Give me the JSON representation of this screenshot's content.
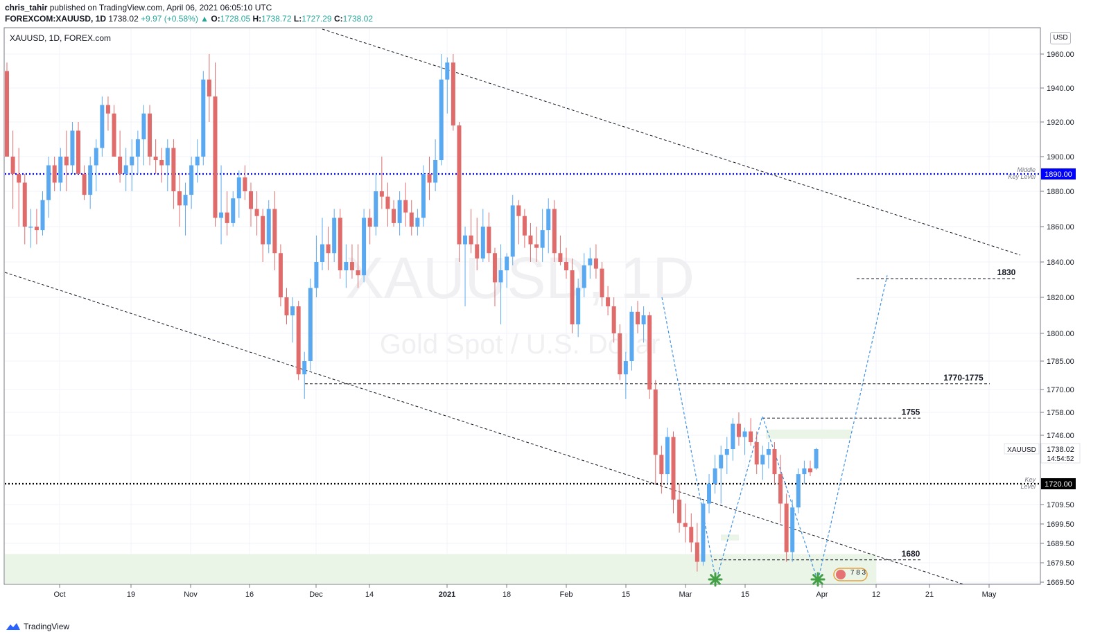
{
  "header": {
    "publisher": "chris_tahir",
    "published_text": "published on TradingView.com, April 06, 2021 06:05:10 UTC",
    "symbol_full": "FOREXCOM:XAUUSD, 1D",
    "last": "1738.02",
    "change": "+9.97 (+0.58%)",
    "open_label": "O:",
    "open": "1728.05",
    "high_label": "H:",
    "high": "1738.72",
    "low_label": "L:",
    "low": "1727.29",
    "close_label": "C:",
    "close": "1738.02"
  },
  "pane_title": "XAUUSD, 1D, FOREX.com",
  "watermark": {
    "line1": "XAUUSD, 1D",
    "line2": "Gold Spot / U.S. Dollar"
  },
  "currency": "USD",
  "footer": {
    "brand": "TradingView"
  },
  "colors": {
    "up": "#5aa9f0",
    "down": "#e06b6b",
    "key_blue": "#0000ff",
    "key_black": "#000000",
    "zone": "#e8f3e4",
    "projection": "#3d8fe0"
  },
  "price_tag": {
    "symbol": "XAUUSD",
    "price": "1738.02",
    "countdown": "14:54:52"
  },
  "key_levels": [
    {
      "price": 1890.0,
      "label": "1890.00",
      "caption1": "Middle",
      "caption2": "Key Level",
      "style": "blue"
    },
    {
      "price": 1720.0,
      "label": "1720.00",
      "caption1": "Key",
      "caption2": "Level",
      "style": "black"
    }
  ],
  "annotations": [
    "1830",
    "1770-1775",
    "1755",
    "1680"
  ],
  "badge_text": "7 8 3",
  "chart_data": {
    "type": "candlestick",
    "title": "XAUUSD, 1D, FOREX.com",
    "x_ticks": [
      "Oct",
      "19",
      "Nov",
      "16",
      "Dec",
      "14",
      "2021",
      "18",
      "Feb",
      "15",
      "Mar",
      "15",
      "Apr",
      "12",
      "21",
      "May"
    ],
    "y_ticks": [
      "1960.00",
      "1940.00",
      "1920.00",
      "1900.00",
      "1880.00",
      "1860.00",
      "1840.00",
      "1820.00",
      "1800.00",
      "1785.00",
      "1770.00",
      "1758.00",
      "1746.00",
      "1709.50",
      "1699.50",
      "1689.50",
      "1679.50",
      "1669.50"
    ],
    "ylim": [
      1665,
      1975
    ],
    "candles": [
      [
        1950,
        1955,
        1900,
        1900
      ],
      [
        1900,
        1915,
        1870,
        1890
      ],
      [
        1890,
        1905,
        1860,
        1885
      ],
      [
        1885,
        1890,
        1850,
        1860
      ],
      [
        1860,
        1870,
        1848,
        1860
      ],
      [
        1860,
        1870,
        1850,
        1858
      ],
      [
        1858,
        1880,
        1855,
        1875
      ],
      [
        1875,
        1900,
        1865,
        1895
      ],
      [
        1895,
        1900,
        1880,
        1885
      ],
      [
        1885,
        1905,
        1880,
        1900
      ],
      [
        1900,
        1915,
        1880,
        1895
      ],
      [
        1895,
        1920,
        1890,
        1915
      ],
      [
        1915,
        1920,
        1890,
        1890
      ],
      [
        1890,
        1895,
        1875,
        1878
      ],
      [
        1878,
        1900,
        1870,
        1895
      ],
      [
        1895,
        1910,
        1880,
        1905
      ],
      [
        1905,
        1935,
        1900,
        1930
      ],
      [
        1930,
        1935,
        1915,
        1925
      ],
      [
        1925,
        1930,
        1900,
        1900
      ],
      [
        1900,
        1915,
        1885,
        1890
      ],
      [
        1890,
        1905,
        1880,
        1895
      ],
      [
        1895,
        1910,
        1880,
        1900
      ],
      [
        1900,
        1915,
        1890,
        1910
      ],
      [
        1910,
        1930,
        1895,
        1925
      ],
      [
        1925,
        1930,
        1895,
        1900
      ],
      [
        1900,
        1910,
        1890,
        1898
      ],
      [
        1898,
        1905,
        1885,
        1895
      ],
      [
        1895,
        1910,
        1880,
        1905
      ],
      [
        1905,
        1910,
        1870,
        1880
      ],
      [
        1880,
        1890,
        1860,
        1872
      ],
      [
        1872,
        1885,
        1855,
        1878
      ],
      [
        1878,
        1900,
        1870,
        1895
      ],
      [
        1895,
        1910,
        1885,
        1900
      ],
      [
        1900,
        1950,
        1895,
        1945
      ],
      [
        1945,
        1960,
        1920,
        1935
      ],
      [
        1935,
        1965,
        1860,
        1865
      ],
      [
        1865,
        1895,
        1850,
        1868
      ],
      [
        1868,
        1880,
        1855,
        1862
      ],
      [
        1862,
        1880,
        1860,
        1876
      ],
      [
        1876,
        1892,
        1865,
        1888
      ],
      [
        1888,
        1895,
        1875,
        1880
      ],
      [
        1880,
        1885,
        1860,
        1870
      ],
      [
        1870,
        1880,
        1855,
        1866
      ],
      [
        1866,
        1870,
        1840,
        1850
      ],
      [
        1850,
        1875,
        1845,
        1870
      ],
      [
        1870,
        1880,
        1835,
        1845
      ],
      [
        1845,
        1850,
        1815,
        1820
      ],
      [
        1820,
        1825,
        1805,
        1810
      ],
      [
        1810,
        1820,
        1795,
        1815
      ],
      [
        1815,
        1818,
        1775,
        1778
      ],
      [
        1778,
        1790,
        1765,
        1785
      ],
      [
        1785,
        1830,
        1780,
        1825
      ],
      [
        1825,
        1855,
        1820,
        1840
      ],
      [
        1840,
        1865,
        1835,
        1850
      ],
      [
        1850,
        1860,
        1835,
        1845
      ],
      [
        1845,
        1870,
        1840,
        1865
      ],
      [
        1865,
        1870,
        1830,
        1835
      ],
      [
        1835,
        1850,
        1825,
        1840
      ],
      [
        1840,
        1850,
        1830,
        1835
      ],
      [
        1835,
        1850,
        1825,
        1832
      ],
      [
        1832,
        1870,
        1828,
        1865
      ],
      [
        1865,
        1870,
        1850,
        1860
      ],
      [
        1860,
        1890,
        1855,
        1880
      ],
      [
        1880,
        1900,
        1870,
        1877
      ],
      [
        1877,
        1885,
        1860,
        1870
      ],
      [
        1870,
        1875,
        1860,
        1862
      ],
      [
        1862,
        1880,
        1855,
        1875
      ],
      [
        1875,
        1885,
        1860,
        1868
      ],
      [
        1868,
        1875,
        1855,
        1860
      ],
      [
        1860,
        1870,
        1855,
        1865
      ],
      [
        1865,
        1895,
        1860,
        1890
      ],
      [
        1890,
        1900,
        1875,
        1885
      ],
      [
        1885,
        1910,
        1880,
        1898
      ],
      [
        1898,
        1960,
        1895,
        1945
      ],
      [
        1945,
        1962,
        1925,
        1955
      ],
      [
        1955,
        1960,
        1915,
        1918
      ],
      [
        1918,
        1920,
        1840,
        1850
      ],
      [
        1850,
        1860,
        1815,
        1855
      ],
      [
        1855,
        1870,
        1845,
        1850
      ],
      [
        1850,
        1865,
        1835,
        1842
      ],
      [
        1842,
        1870,
        1840,
        1860
      ],
      [
        1860,
        1868,
        1840,
        1845
      ],
      [
        1845,
        1848,
        1815,
        1828
      ],
      [
        1828,
        1850,
        1805,
        1835
      ],
      [
        1835,
        1845,
        1825,
        1843
      ],
      [
        1843,
        1878,
        1838,
        1872
      ],
      [
        1872,
        1875,
        1850,
        1866
      ],
      [
        1866,
        1870,
        1848,
        1855
      ],
      [
        1855,
        1862,
        1840,
        1850
      ],
      [
        1850,
        1860,
        1840,
        1848
      ],
      [
        1848,
        1870,
        1840,
        1858
      ],
      [
        1858,
        1876,
        1845,
        1870
      ],
      [
        1870,
        1875,
        1840,
        1845
      ],
      [
        1845,
        1855,
        1838,
        1840
      ],
      [
        1840,
        1848,
        1830,
        1835
      ],
      [
        1835,
        1842,
        1800,
        1805
      ],
      [
        1805,
        1830,
        1798,
        1825
      ],
      [
        1825,
        1845,
        1820,
        1838
      ],
      [
        1838,
        1848,
        1830,
        1842
      ],
      [
        1842,
        1850,
        1830,
        1836
      ],
      [
        1836,
        1840,
        1815,
        1820
      ],
      [
        1820,
        1826,
        1810,
        1815
      ],
      [
        1815,
        1820,
        1795,
        1800
      ],
      [
        1800,
        1805,
        1775,
        1778
      ],
      [
        1778,
        1790,
        1765,
        1785
      ],
      [
        1785,
        1815,
        1780,
        1812
      ],
      [
        1812,
        1818,
        1800,
        1805
      ],
      [
        1805,
        1815,
        1795,
        1810
      ],
      [
        1810,
        1812,
        1765,
        1770
      ],
      [
        1770,
        1775,
        1720,
        1735
      ],
      [
        1735,
        1740,
        1715,
        1725
      ],
      [
        1725,
        1750,
        1720,
        1745
      ],
      [
        1745,
        1748,
        1705,
        1712
      ],
      [
        1712,
        1720,
        1695,
        1700
      ],
      [
        1700,
        1710,
        1690,
        1698
      ],
      [
        1698,
        1705,
        1685,
        1690
      ],
      [
        1690,
        1700,
        1675,
        1680
      ],
      [
        1680,
        1712,
        1678,
        1710
      ],
      [
        1710,
        1725,
        1705,
        1720
      ],
      [
        1720,
        1735,
        1715,
        1728
      ],
      [
        1728,
        1740,
        1710,
        1735
      ],
      [
        1735,
        1745,
        1725,
        1738
      ],
      [
        1738,
        1755,
        1732,
        1752
      ],
      [
        1752,
        1758,
        1740,
        1745
      ],
      [
        1745,
        1750,
        1735,
        1748
      ],
      [
        1748,
        1755,
        1740,
        1742
      ],
      [
        1742,
        1748,
        1725,
        1730
      ],
      [
        1730,
        1740,
        1722,
        1735
      ],
      [
        1735,
        1742,
        1728,
        1738
      ],
      [
        1738,
        1742,
        1720,
        1725
      ],
      [
        1725,
        1735,
        1700,
        1710
      ],
      [
        1710,
        1715,
        1680,
        1685
      ],
      [
        1685,
        1712,
        1680,
        1708
      ],
      [
        1708,
        1728,
        1705,
        1725
      ],
      [
        1725,
        1732,
        1720,
        1728
      ],
      [
        1728,
        1732,
        1724,
        1726
      ],
      [
        1728,
        1738.72,
        1727.29,
        1738.02
      ]
    ],
    "series": [
      {
        "name": "XAUUSD",
        "type": "candlestick"
      }
    ]
  }
}
